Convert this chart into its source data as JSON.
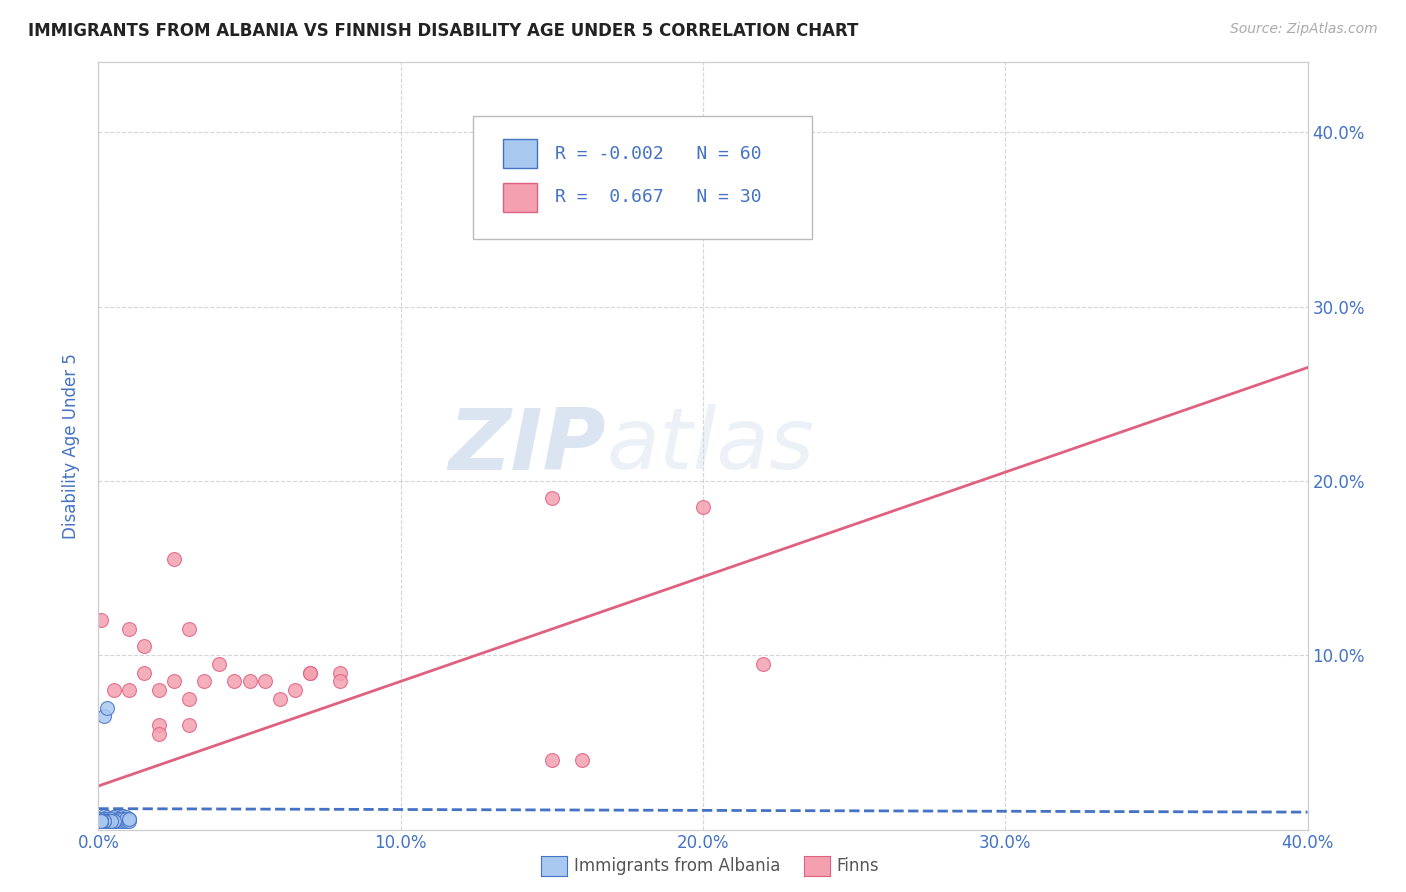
{
  "title": "IMMIGRANTS FROM ALBANIA VS FINNISH DISABILITY AGE UNDER 5 CORRELATION CHART",
  "source": "Source: ZipAtlas.com",
  "ylabel": "Disability Age Under 5",
  "xmin": 0.0,
  "xmax": 0.4,
  "ymin": 0.0,
  "ymax": 0.44,
  "xtick_labels": [
    "0.0%",
    "10.0%",
    "20.0%",
    "30.0%",
    "40.0%"
  ],
  "xtick_vals": [
    0.0,
    0.1,
    0.2,
    0.3,
    0.4
  ],
  "ytick_labels": [
    "10.0%",
    "20.0%",
    "30.0%",
    "40.0%"
  ],
  "ytick_vals": [
    0.1,
    0.2,
    0.3,
    0.4
  ],
  "color_blue": "#a8c8f0",
  "color_pink": "#f4a0b0",
  "color_blue_dark": "#4472c4",
  "color_pink_dark": "#e06080",
  "legend_R1": "-0.002",
  "legend_N1": "60",
  "legend_R2": "0.667",
  "legend_N2": "30",
  "blue_scatter_x": [
    0.002,
    0.003,
    0.004,
    0.005,
    0.006,
    0.007,
    0.008,
    0.009,
    0.01,
    0.002,
    0.003,
    0.003,
    0.004,
    0.004,
    0.005,
    0.005,
    0.005,
    0.006,
    0.006,
    0.007,
    0.007,
    0.008,
    0.008,
    0.009,
    0.009,
    0.01,
    0.01,
    0.001,
    0.001,
    0.002,
    0.002,
    0.003,
    0.003,
    0.004,
    0.004,
    0.005,
    0.001,
    0.001,
    0.002,
    0.002,
    0.003,
    0.001,
    0.002,
    0.001,
    0.001,
    0.001,
    0.002,
    0.003,
    0.004,
    0.001,
    0.002,
    0.001,
    0.001,
    0.002,
    0.001,
    0.001,
    0.001,
    0.001,
    0.001,
    0.001
  ],
  "blue_scatter_y": [
    0.008,
    0.007,
    0.006,
    0.007,
    0.006,
    0.007,
    0.008,
    0.007,
    0.006,
    0.065,
    0.07,
    0.005,
    0.005,
    0.006,
    0.005,
    0.006,
    0.007,
    0.005,
    0.006,
    0.005,
    0.006,
    0.005,
    0.006,
    0.005,
    0.006,
    0.005,
    0.006,
    0.005,
    0.006,
    0.005,
    0.006,
    0.005,
    0.006,
    0.005,
    0.006,
    0.005,
    0.005,
    0.005,
    0.005,
    0.005,
    0.005,
    0.005,
    0.005,
    0.005,
    0.005,
    0.005,
    0.005,
    0.005,
    0.005,
    0.005,
    0.005,
    0.005,
    0.005,
    0.005,
    0.005,
    0.005,
    0.005,
    0.005,
    0.005,
    0.005
  ],
  "pink_scatter_x": [
    0.001,
    0.01,
    0.02,
    0.03,
    0.04,
    0.05,
    0.06,
    0.07,
    0.08,
    0.015,
    0.025,
    0.035,
    0.045,
    0.055,
    0.065,
    0.005,
    0.015,
    0.02,
    0.025,
    0.03,
    0.01,
    0.02,
    0.03,
    0.07,
    0.08,
    0.15,
    0.2,
    0.22,
    0.15,
    0.16
  ],
  "pink_scatter_y": [
    0.12,
    0.115,
    0.08,
    0.115,
    0.095,
    0.085,
    0.075,
    0.09,
    0.09,
    0.105,
    0.155,
    0.085,
    0.085,
    0.085,
    0.08,
    0.08,
    0.09,
    0.06,
    0.085,
    0.075,
    0.08,
    0.055,
    0.06,
    0.09,
    0.085,
    0.19,
    0.185,
    0.095,
    0.04,
    0.04
  ],
  "blue_trendline_x": [
    0.0,
    0.4
  ],
  "blue_trendline_y": [
    0.012,
    0.01
  ],
  "pink_trendline_x": [
    0.0,
    0.4
  ],
  "pink_trendline_y": [
    0.025,
    0.265
  ],
  "bg_color": "#ffffff",
  "grid_color": "#cccccc",
  "title_color": "#222222",
  "tick_label_color": "#4472c4"
}
